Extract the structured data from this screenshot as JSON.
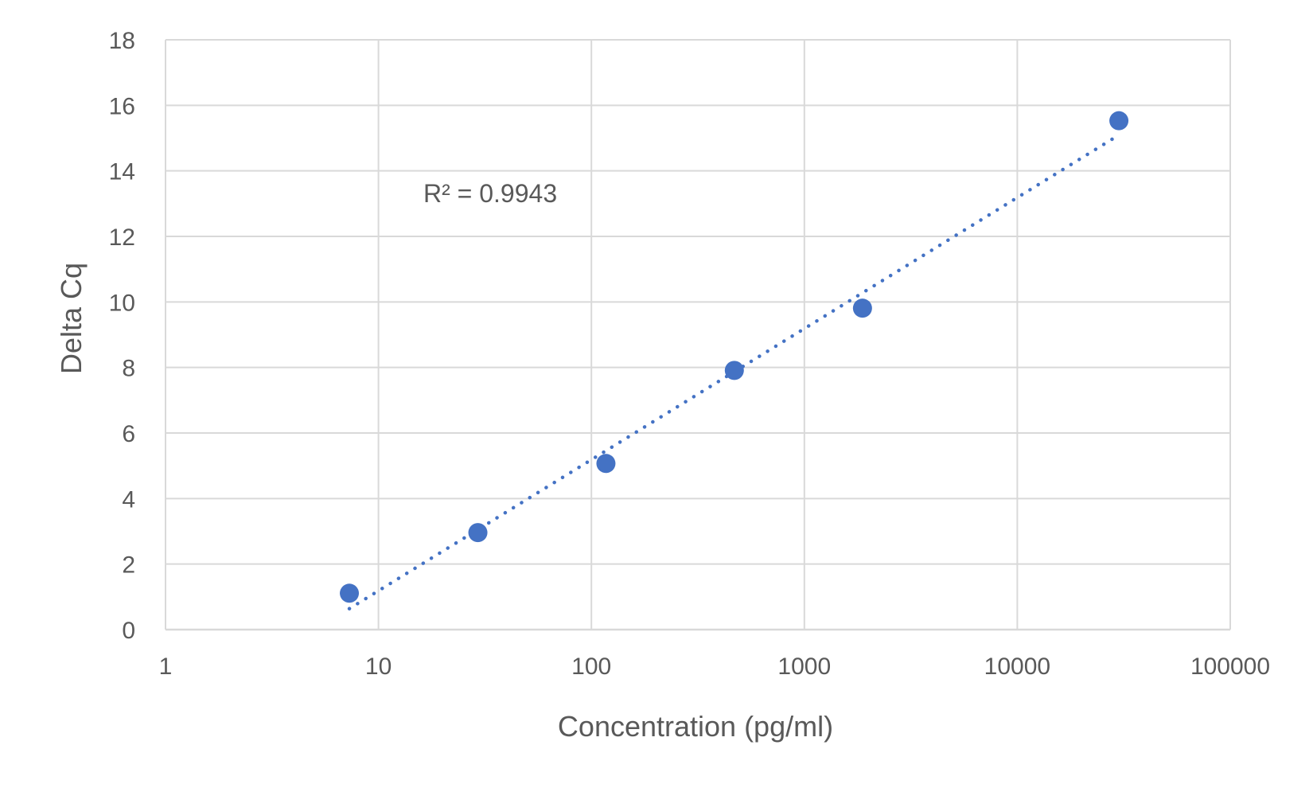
{
  "chart_data": {
    "type": "scatter",
    "title": "",
    "xlabel": "Concentration (pg/ml)",
    "ylabel": "Delta Cq",
    "x_scale": "log",
    "xlim": [
      1,
      100000
    ],
    "ylim": [
      0,
      18
    ],
    "x_ticks": [
      "1",
      "10",
      "100",
      "1000",
      "10000",
      "100000"
    ],
    "y_ticks": [
      "0",
      "2",
      "4",
      "6",
      "8",
      "10",
      "12",
      "14",
      "16",
      "18"
    ],
    "grid": true,
    "legend": "none",
    "points": [
      {
        "x": 7.3,
        "y": 1.11
      },
      {
        "x": 29.3,
        "y": 2.96
      },
      {
        "x": 117,
        "y": 5.07
      },
      {
        "x": 469,
        "y": 7.91
      },
      {
        "x": 1875,
        "y": 9.81
      },
      {
        "x": 30000,
        "y": 15.53
      }
    ],
    "trendline": {
      "type": "logarithmic",
      "style": "dotted",
      "r2_label": "R² = 0.9943"
    },
    "colors": {
      "marker": "#4472c4",
      "trendline": "#4472c4",
      "grid": "#d9d9d9",
      "text": "#595959"
    }
  }
}
